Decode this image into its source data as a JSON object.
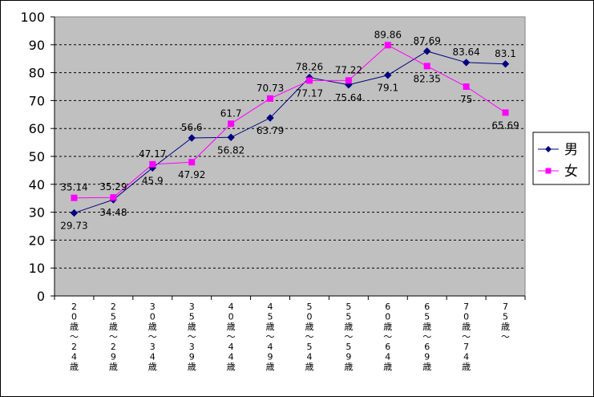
{
  "chart_data": {
    "type": "line",
    "title": "",
    "xlabel": "",
    "ylabel": "",
    "ylim": [
      0,
      100
    ],
    "yticks": [
      0,
      10,
      20,
      30,
      40,
      50,
      60,
      70,
      80,
      90,
      100
    ],
    "grid": "horizontal-dashed",
    "legend_position": "right",
    "categories": [
      "20歳～24歳",
      "25歳～29歳",
      "30歳～34歳",
      "35歳～39歳",
      "40歳～44歳",
      "45歳～49歳",
      "50歳～54歳",
      "55歳～59歳",
      "60歳～64歳",
      "65歳～69歳",
      "70歳～74歳",
      "75歳～"
    ],
    "series": [
      {
        "name": "男",
        "color": "#000080",
        "marker": "diamond",
        "values": [
          29.73,
          34.48,
          45.9,
          56.6,
          56.82,
          63.79,
          78.26,
          75.64,
          79.1,
          87.69,
          83.64,
          83.1
        ]
      },
      {
        "name": "女",
        "color": "#ff00ff",
        "marker": "square",
        "values": [
          35.14,
          35.29,
          47.17,
          47.92,
          61.7,
          70.73,
          77.17,
          77.22,
          89.86,
          82.35,
          75,
          65.69
        ]
      }
    ]
  }
}
